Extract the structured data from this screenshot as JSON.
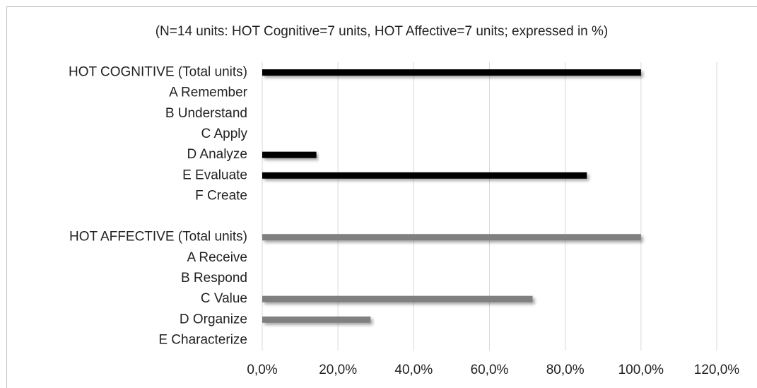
{
  "chart_data": {
    "type": "hbar",
    "title": "(N=14 units: HOT Cognitive=7 units, HOT Affective=7 units; expressed in %)",
    "categories": [
      "HOT COGNITIVE (Total units)",
      "A Remember",
      "B Understand",
      "C Apply",
      "D Analyze",
      "E Evaluate",
      "F Create",
      null,
      "HOT AFFECTIVE (Total units)",
      "A Receive",
      "B Respond",
      "C Value",
      "D Organize",
      "E Characterize"
    ],
    "values": [
      100,
      0,
      0,
      0,
      14.3,
      85.7,
      0,
      null,
      100,
      0,
      0,
      71.4,
      28.6,
      0
    ],
    "colors": [
      "#000000",
      "#000000",
      "#000000",
      "#000000",
      "#000000",
      "#000000",
      "#000000",
      null,
      "#808080",
      "#808080",
      "#808080",
      "#808080",
      "#808080",
      "#808080"
    ],
    "xlim": [
      0,
      120
    ],
    "xticks": [
      {
        "value": 0,
        "label": "0,0%"
      },
      {
        "value": 20,
        "label": "20,0%"
      },
      {
        "value": 40,
        "label": "40,0%"
      },
      {
        "value": 60,
        "label": "60,0%"
      },
      {
        "value": 80,
        "label": "80,0%"
      },
      {
        "value": 100,
        "label": "100,0%"
      },
      {
        "value": 120,
        "label": "120,0%"
      }
    ],
    "grid": true
  }
}
